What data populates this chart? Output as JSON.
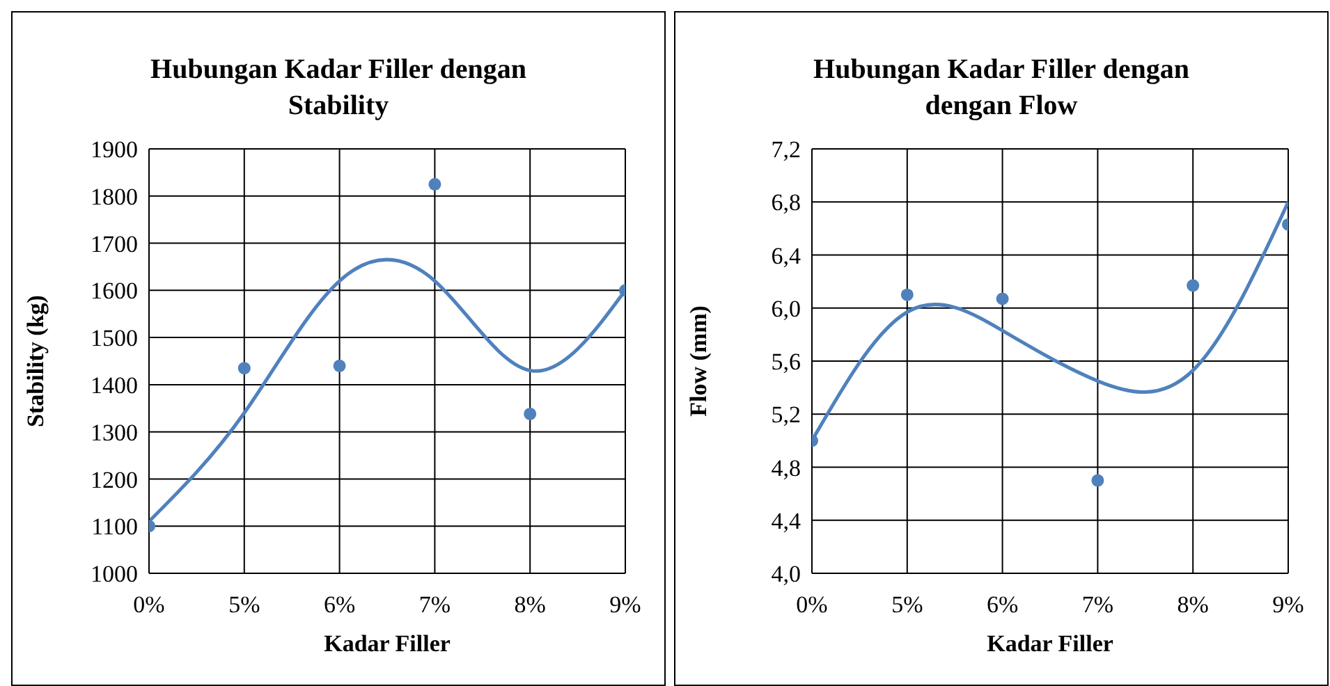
{
  "chart_data": [
    {
      "type": "scatter",
      "title": "Hubungan Kadar Filler dengan Stability",
      "xlabel": "Kadar Filler",
      "ylabel": "Stability (kg)",
      "categories": [
        "0%",
        "5%",
        "6%",
        "7%",
        "8%",
        "9%"
      ],
      "ylim": [
        1000,
        1900
      ],
      "yticks": [
        1000,
        1100,
        1200,
        1300,
        1400,
        1500,
        1600,
        1700,
        1800,
        1900
      ],
      "grid": true,
      "legend": false,
      "series": [
        {
          "color": "#4f81bd",
          "marker": "circle",
          "values": [
            1100,
            1435,
            1440,
            1825,
            1338,
            1600
          ]
        },
        {
          "type": "line",
          "color": "#4f81bd",
          "marker": "none",
          "values": [
            1110,
            1340,
            1620,
            1620,
            1430,
            1600
          ]
        }
      ]
    },
    {
      "type": "scatter",
      "title": "Hubungan Kadar Filler dengan dengan Flow",
      "xlabel": "Kadar Filler",
      "ylabel": "Flow (mm)",
      "categories": [
        "0%",
        "5%",
        "6%",
        "7%",
        "8%",
        "9%"
      ],
      "ylim": [
        4.0,
        7.2
      ],
      "yticks": [
        {
          "value": 4.0,
          "label": "4,0"
        },
        {
          "value": 4.4,
          "label": "4,4"
        },
        {
          "value": 4.8,
          "label": "4,8"
        },
        {
          "value": 5.2,
          "label": "5,2"
        },
        {
          "value": 5.6,
          "label": "5,6"
        },
        {
          "value": 6.0,
          "label": "6,0"
        },
        {
          "value": 6.4,
          "label": "6,4"
        },
        {
          "value": 6.8,
          "label": "6,8"
        },
        {
          "value": 7.2,
          "label": "7,2"
        }
      ],
      "grid": true,
      "legend": false,
      "series": [
        {
          "color": "#4f81bd",
          "marker": "circle",
          "values": [
            5.0,
            6.1,
            6.07,
            4.7,
            6.17,
            6.63
          ]
        },
        {
          "type": "line",
          "color": "#4f81bd",
          "marker": "none",
          "values": [
            5.0,
            5.97,
            5.83,
            5.45,
            5.53,
            6.8
          ]
        }
      ]
    }
  ]
}
